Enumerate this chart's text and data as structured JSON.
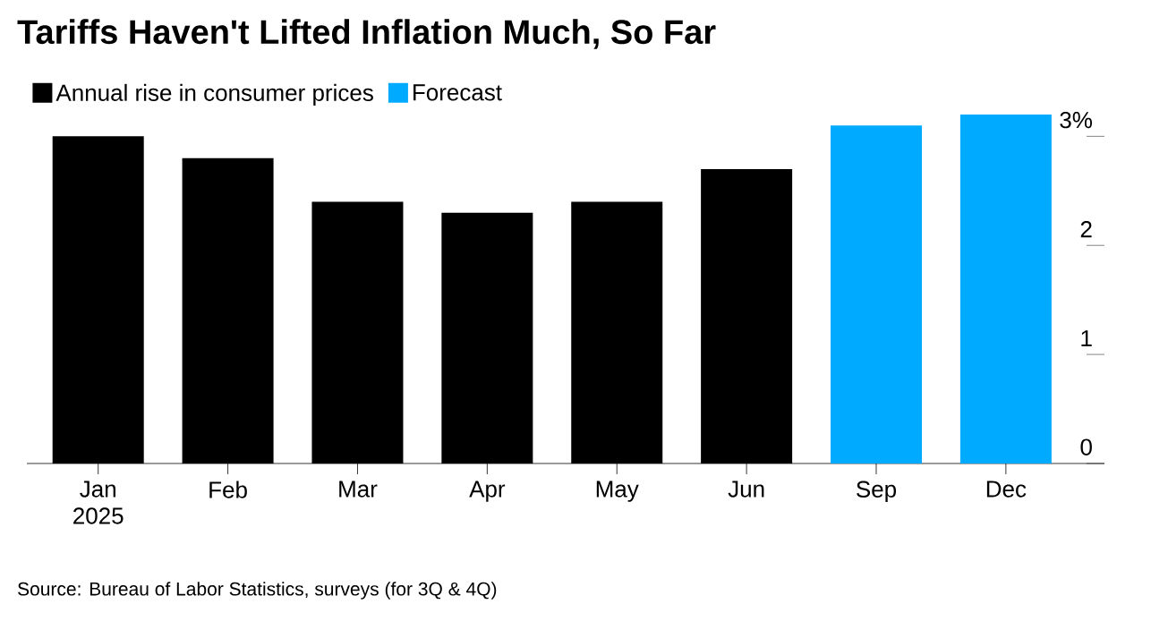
{
  "chart_data": {
    "type": "bar",
    "title": "Tariffs Haven't Lifted Inflation Much, So Far",
    "categories": [
      "Jan 2025",
      "Feb",
      "Mar",
      "Apr",
      "May",
      "Jun",
      "Sep",
      "Dec"
    ],
    "series": [
      {
        "name": "Annual rise in consumer prices",
        "color": "#000000",
        "values": [
          3.0,
          2.8,
          2.4,
          2.3,
          2.4,
          2.7,
          null,
          null
        ]
      },
      {
        "name": "Forecast",
        "color": "#00aaff",
        "values": [
          null,
          null,
          null,
          null,
          null,
          null,
          3.1,
          3.2
        ]
      }
    ],
    "ylim": [
      0,
      3.2
    ],
    "yticks": [
      0,
      1,
      2,
      {
        "value": 3,
        "label": "3%"
      }
    ],
    "legend": "top left",
    "grid": false,
    "annotations": [
      "Source: Bureau of Labor Statistics, surveys (for 3Q & 4Q)"
    ]
  }
}
